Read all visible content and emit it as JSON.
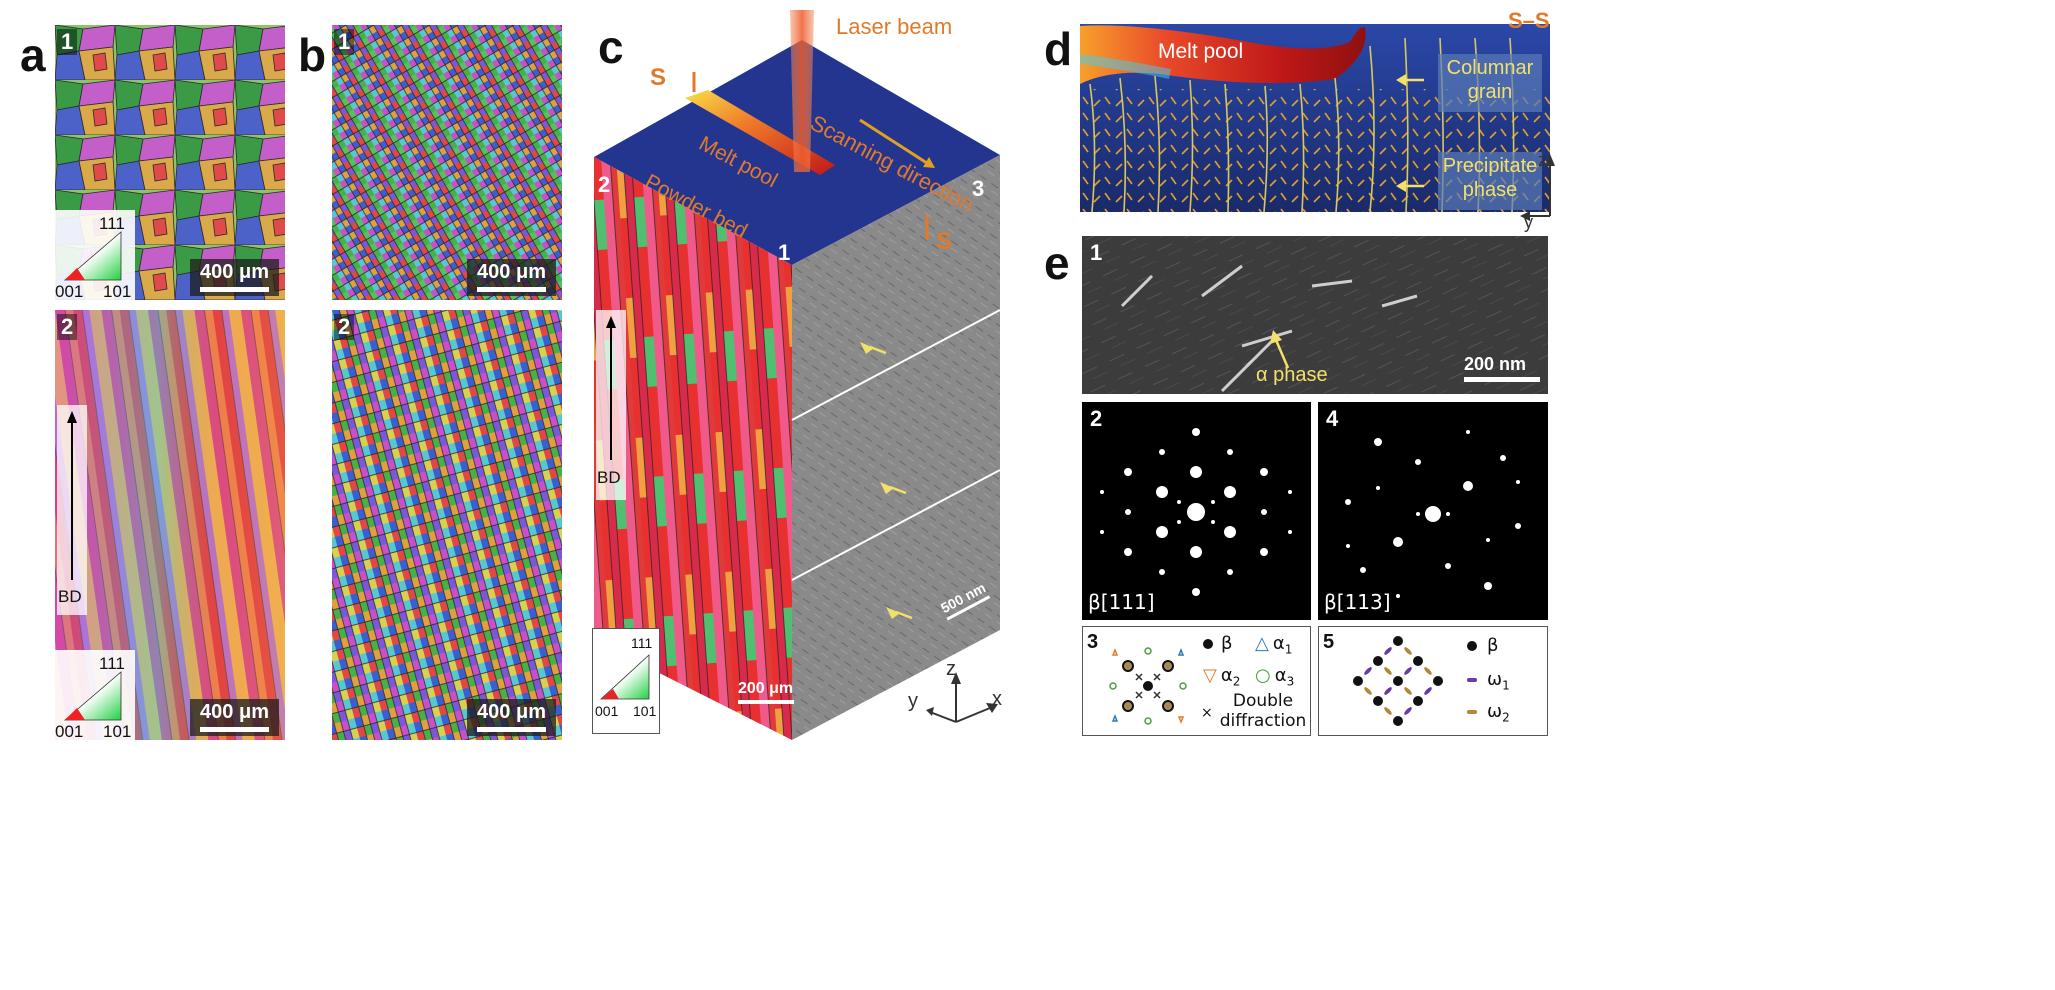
{
  "panels": {
    "a": {
      "letter": "a",
      "sub1": "1",
      "sub2": "2",
      "scale1": "400 μm",
      "scale2": "400 μm",
      "tri_top": "111",
      "tri_left": "001",
      "tri_right": "101",
      "bd": "BD"
    },
    "b": {
      "letter": "b",
      "sub1": "1",
      "sub2": "2",
      "scale1": "400 μm",
      "scale2": "400 μm"
    },
    "c": {
      "letter": "c",
      "laser": "Laser beam",
      "scanning": "Scanning direction",
      "melt_pool": "Melt pool",
      "powder_bed": "Powder bed",
      "s_left": "S",
      "s_right": "S",
      "sub1": "1",
      "sub2": "2",
      "sub3": "3",
      "bd": "BD",
      "scale_ebsd": "200 μm",
      "scale_tem": "500 nm",
      "tri_top": "111",
      "tri_left": "001",
      "tri_right": "101",
      "axis_z": "z",
      "axis_y": "y",
      "axis_x": "x"
    },
    "d": {
      "letter": "d",
      "melt_pool": "Melt pool",
      "section": "S–S",
      "columnar": "Columnar\ngrain",
      "precipitate": "Precipitate\nphase",
      "axis_z": "z",
      "axis_y": "y"
    },
    "e": {
      "letter": "e",
      "sub1": "1",
      "alpha": "α phase",
      "scale": "200 nm",
      "sub2": "2",
      "zone2": "β[111]",
      "sub4": "4",
      "zone4": "β[113]",
      "sub3": "3",
      "beta": "β",
      "alpha1": "α",
      "alpha1_sub": "1",
      "alpha2": "α",
      "alpha2_sub": "2",
      "alpha3": "α",
      "alpha3_sub": "3",
      "double": "Double\ndiffraction",
      "sub5": "5",
      "beta5": "β",
      "omega1": "ω",
      "omega1_sub": "1",
      "omega2": "ω",
      "omega2_sub": "2"
    }
  },
  "colors": {
    "accent_orange": "#e07a2a",
    "accent_yellow": "#f1e06a",
    "substrate_blue": "#203a8f"
  }
}
